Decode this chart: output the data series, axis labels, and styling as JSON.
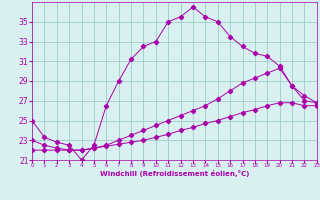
{
  "xlabel": "Windchill (Refroidissement éolien,°C)",
  "bg_color": "#d8f0f0",
  "line_color": "#aa00aa",
  "grid_color": "#a0cccc",
  "xlim": [
    0,
    23
  ],
  "ylim": [
    21,
    37
  ],
  "yticks": [
    21,
    23,
    25,
    27,
    29,
    31,
    33,
    35
  ],
  "xticks": [
    0,
    1,
    2,
    3,
    4,
    5,
    6,
    7,
    8,
    9,
    10,
    11,
    12,
    13,
    14,
    15,
    16,
    17,
    18,
    19,
    20,
    21,
    22,
    23
  ],
  "s1x": [
    0,
    1,
    2,
    3,
    4,
    5,
    6,
    7,
    8,
    9,
    10,
    11,
    12,
    13,
    14,
    15,
    16,
    17,
    18,
    19,
    20,
    21,
    22,
    23
  ],
  "s1y": [
    25.0,
    23.3,
    22.8,
    22.5,
    21.0,
    22.5,
    26.5,
    29.0,
    31.2,
    32.5,
    33.0,
    35.0,
    35.5,
    36.5,
    35.5,
    35.0,
    33.5,
    32.5,
    31.8,
    31.5,
    30.5,
    28.5,
    27.0,
    26.8
  ],
  "s2x": [
    0,
    1,
    2,
    3,
    4,
    5,
    6,
    7,
    8,
    9,
    10,
    11,
    12,
    13,
    14,
    15,
    16,
    17,
    18,
    19,
    20,
    21,
    22,
    23
  ],
  "s2y": [
    23.0,
    22.5,
    22.2,
    22.0,
    22.0,
    22.2,
    22.5,
    23.0,
    23.5,
    24.0,
    24.5,
    25.0,
    25.5,
    26.0,
    26.5,
    27.2,
    28.0,
    28.8,
    29.3,
    29.8,
    30.3,
    28.5,
    27.5,
    26.8
  ],
  "s3x": [
    0,
    1,
    2,
    3,
    4,
    5,
    6,
    7,
    8,
    9,
    10,
    11,
    12,
    13,
    14,
    15,
    16,
    17,
    18,
    19,
    20,
    21,
    22,
    23
  ],
  "s3y": [
    22.0,
    22.0,
    22.0,
    22.0,
    22.0,
    22.2,
    22.4,
    22.6,
    22.8,
    23.0,
    23.3,
    23.6,
    24.0,
    24.3,
    24.7,
    25.0,
    25.4,
    25.8,
    26.1,
    26.5,
    26.8,
    26.8,
    26.5,
    26.5
  ]
}
